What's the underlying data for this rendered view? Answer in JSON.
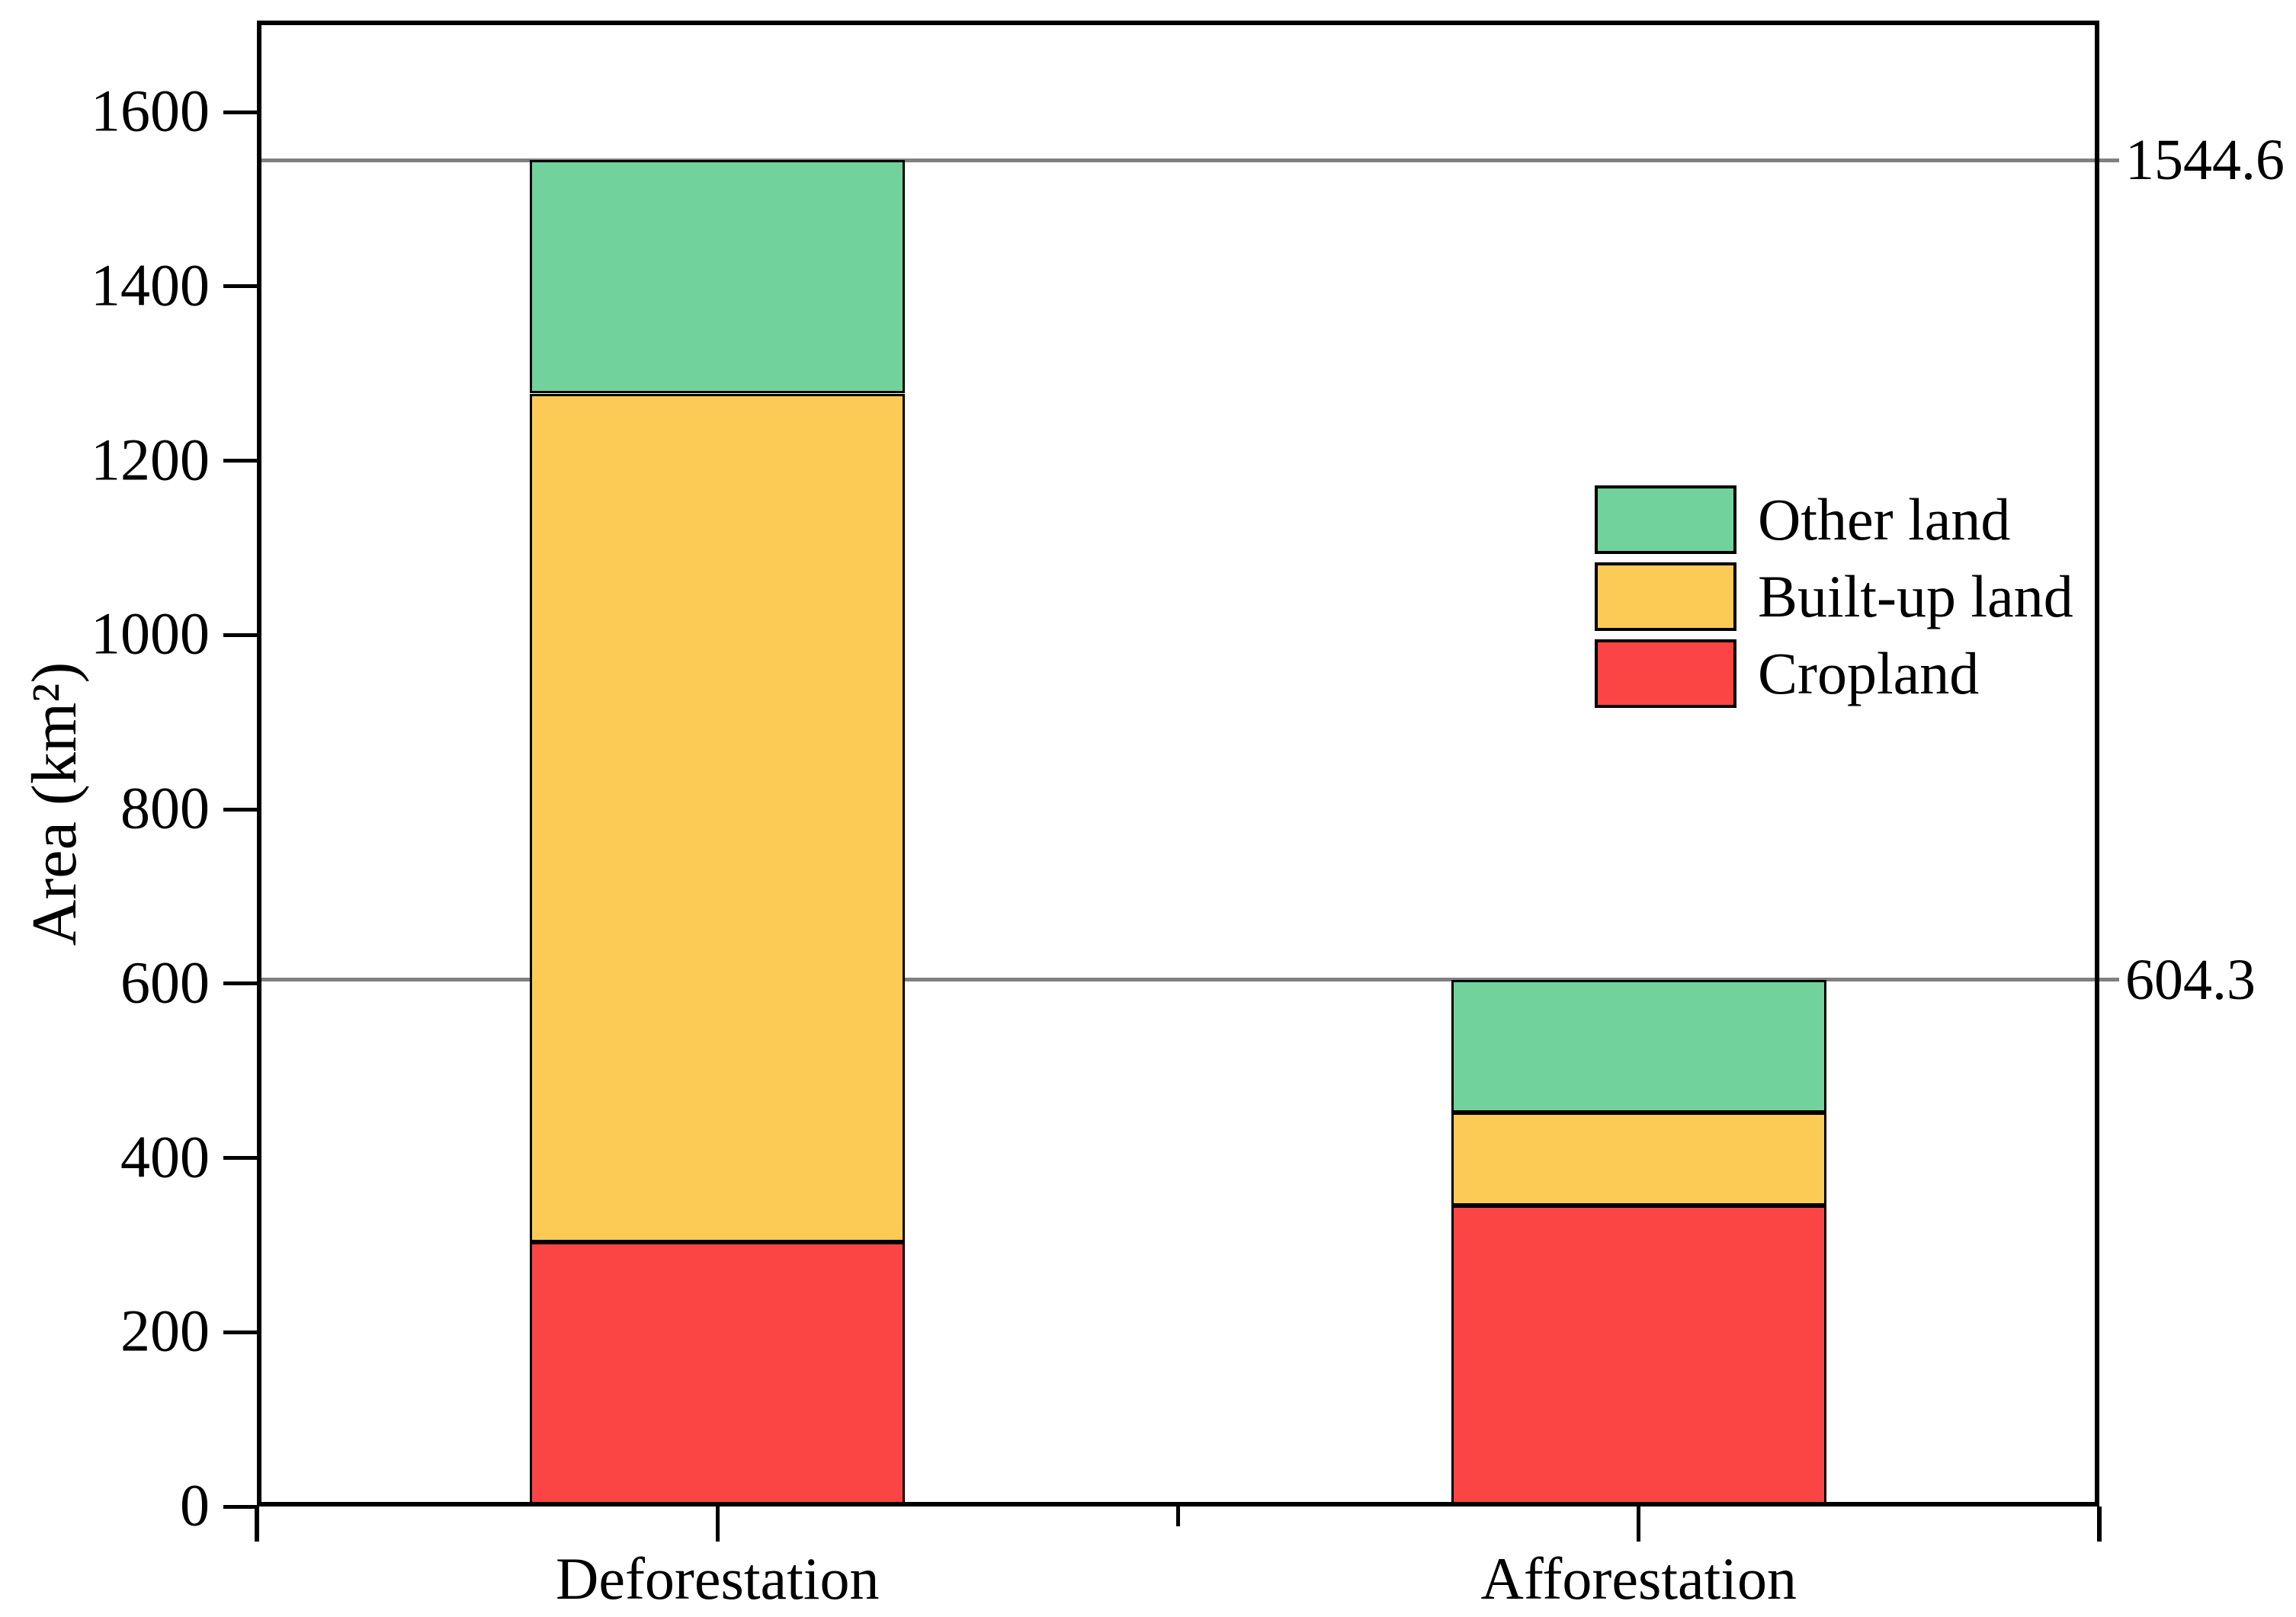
{
  "figure": {
    "background": "#ffffff",
    "title": ""
  },
  "chart_data": {
    "type": "bar",
    "stacked": true,
    "title": "",
    "categories": [
      "Deforestation",
      "Afforestation"
    ],
    "series": [
      {
        "name": "Cropland",
        "color": "#FB4545",
        "values": [
          303.0,
          345.0
        ]
      },
      {
        "name": "Built-up land",
        "color": "#FCCB55",
        "values": [
          974.0,
          106.7
        ]
      },
      {
        "name": "Other land",
        "color": "#72D29B",
        "values": [
          267.6,
          152.6
        ]
      }
    ],
    "totals": [
      1544.6,
      604.3
    ],
    "reference_lines": [
      {
        "value": 1544.6,
        "label": "1544.6",
        "color": "#808080"
      },
      {
        "value": 604.3,
        "label": "604.3",
        "color": "#808080"
      }
    ],
    "ylabel": "Area (km²)",
    "xlabel": "",
    "yticks": [
      0,
      200,
      400,
      600,
      800,
      1000,
      1200,
      1400,
      1600
    ],
    "ylim": [
      0,
      1705
    ],
    "grid": false,
    "legend": {
      "position": "right-center",
      "items": [
        "Other land",
        "Built-up land",
        "Cropland"
      ]
    }
  }
}
